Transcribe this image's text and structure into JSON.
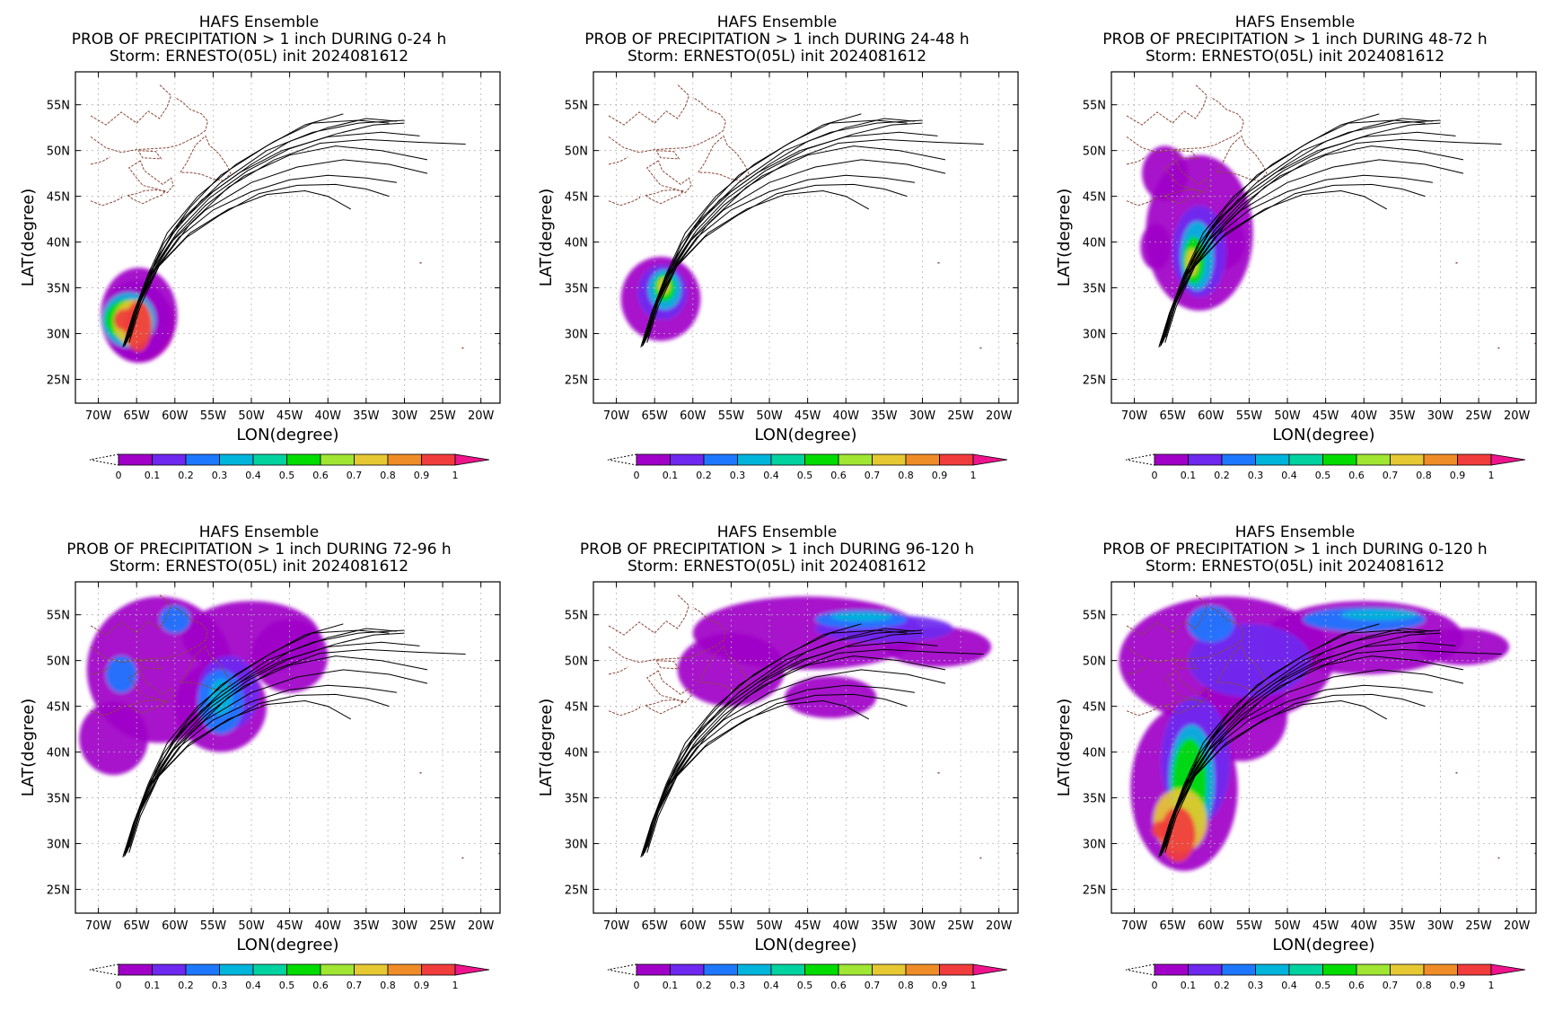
{
  "header": {
    "line1": "HAFS Ensemble",
    "line3": "Storm: ERNESTO(05L) init 2024081612"
  },
  "axes": {
    "xlabel": "LON(degree)",
    "ylabel": "LAT(degree)",
    "xticks": [
      "70W",
      "65W",
      "60W",
      "55W",
      "50W",
      "45W",
      "40W",
      "35W",
      "30W",
      "25W",
      "20W"
    ],
    "yticks": [
      "25N",
      "30N",
      "35N",
      "40N",
      "45N",
      "50N",
      "55N"
    ]
  },
  "colorbar": {
    "labels": [
      "0",
      "0.1",
      "0.2",
      "0.3",
      "0.4",
      "0.5",
      "0.6",
      "0.7",
      "0.8",
      "0.9",
      "1"
    ],
    "colors": [
      "#a000c8",
      "#6e28f0",
      "#1e78ff",
      "#00b4dc",
      "#00d2a0",
      "#00dc00",
      "#a0e632",
      "#e6c832",
      "#f08c28",
      "#f03c3c",
      "#f0148c"
    ]
  },
  "panels": [
    {
      "id": "0-24",
      "line2": "PROB OF PRECIPITATION > 1 inch DURING  0-24 h"
    },
    {
      "id": "24-48",
      "line2": "PROB OF PRECIPITATION > 1 inch DURING 24-48 h"
    },
    {
      "id": "48-72",
      "line2": "PROB OF PRECIPITATION > 1 inch DURING 48-72 h"
    },
    {
      "id": "72-96",
      "line2": "PROB OF PRECIPITATION > 1 inch DURING 72-96 h"
    },
    {
      "id": "96-120",
      "line2": "PROB OF PRECIPITATION > 1 inch DURING 96-120 h"
    },
    {
      "id": "0-120",
      "line2": "PROB OF PRECIPITATION > 1 inch DURING 0-120 h"
    }
  ],
  "tracks": [
    [
      [
        -66.5,
        28.7
      ],
      [
        -65.5,
        32
      ],
      [
        -63,
        37
      ],
      [
        -60,
        41.5
      ],
      [
        -55,
        45.5
      ],
      [
        -50,
        48.5
      ],
      [
        -45,
        51
      ],
      [
        -40,
        52.5
      ],
      [
        -35,
        53.5
      ],
      [
        -31,
        53.2
      ]
    ],
    [
      [
        -66.8,
        28.5
      ],
      [
        -65.5,
        32
      ],
      [
        -63.5,
        36.5
      ],
      [
        -61,
        41
      ],
      [
        -57,
        45
      ],
      [
        -52,
        48.5
      ],
      [
        -47,
        51
      ],
      [
        -42,
        53
      ],
      [
        -36,
        53.3
      ],
      [
        -32,
        53
      ]
    ],
    [
      [
        -66.3,
        29
      ],
      [
        -65,
        33
      ],
      [
        -62.5,
        38
      ],
      [
        -59,
        42.5
      ],
      [
        -54,
        46.5
      ],
      [
        -48,
        50
      ],
      [
        -42,
        52
      ],
      [
        -36,
        53
      ],
      [
        -30,
        53.3
      ]
    ],
    [
      [
        -66,
        29
      ],
      [
        -64.5,
        33
      ],
      [
        -62,
        37.5
      ],
      [
        -58,
        42
      ],
      [
        -53,
        46
      ],
      [
        -47,
        49
      ],
      [
        -41,
        50.8
      ],
      [
        -35,
        51.2
      ],
      [
        -28,
        50.9
      ],
      [
        -22,
        50.7
      ]
    ],
    [
      [
        -66.7,
        28.8
      ],
      [
        -65.5,
        31.8
      ],
      [
        -63.8,
        35.5
      ],
      [
        -61.5,
        39.8
      ],
      [
        -58,
        43.8
      ],
      [
        -54,
        47.3
      ],
      [
        -48,
        50.5
      ],
      [
        -43,
        52.8
      ],
      [
        -38,
        54
      ]
    ],
    [
      [
        -66.2,
        29.2
      ],
      [
        -65,
        32.5
      ],
      [
        -63,
        36.5
      ],
      [
        -60,
        40.5
      ],
      [
        -56,
        44
      ],
      [
        -51,
        47.2
      ],
      [
        -45,
        49.5
      ],
      [
        -39,
        50.5
      ],
      [
        -33,
        50
      ],
      [
        -27,
        49
      ]
    ],
    [
      [
        -66.4,
        28.9
      ],
      [
        -65.3,
        32.2
      ],
      [
        -63.5,
        36
      ],
      [
        -60.5,
        40
      ],
      [
        -56,
        43.5
      ],
      [
        -50,
        46.5
      ],
      [
        -44,
        48.2
      ],
      [
        -38,
        49
      ],
      [
        -32,
        48.5
      ],
      [
        -27,
        47.5
      ]
    ],
    [
      [
        -66.5,
        29
      ],
      [
        -65.2,
        32.5
      ],
      [
        -63,
        36.5
      ],
      [
        -59.5,
        40.5
      ],
      [
        -55,
        43.5
      ],
      [
        -50,
        45.5
      ],
      [
        -45,
        46.8
      ],
      [
        -40,
        47.3
      ],
      [
        -35,
        47
      ],
      [
        -31,
        46.5
      ]
    ],
    [
      [
        -66.1,
        29.4
      ],
      [
        -64.8,
        33
      ],
      [
        -62.5,
        37
      ],
      [
        -58.5,
        40.5
      ],
      [
        -54,
        43
      ],
      [
        -49,
        45.3
      ],
      [
        -44,
        46.2
      ],
      [
        -39,
        46.3
      ],
      [
        -35,
        45.8
      ],
      [
        -32,
        45
      ]
    ],
    [
      [
        -65.9,
        29.6
      ],
      [
        -64.5,
        33.5
      ],
      [
        -62,
        37.5
      ],
      [
        -58,
        41
      ],
      [
        -53,
        43.6
      ],
      [
        -48,
        45.2
      ],
      [
        -43,
        45.6
      ],
      [
        -40,
        45
      ],
      [
        -37,
        43.6
      ]
    ],
    [
      [
        -66.6,
        28.6
      ],
      [
        -65.4,
        32.3
      ],
      [
        -63.2,
        36.8
      ],
      [
        -60.2,
        41
      ],
      [
        -56.5,
        44.6
      ],
      [
        -51.5,
        47.6
      ],
      [
        -46,
        50
      ],
      [
        -40,
        51.5
      ],
      [
        -33,
        52
      ],
      [
        -28,
        51.6
      ]
    ],
    [
      [
        -66.3,
        29.1
      ],
      [
        -65.1,
        32.8
      ],
      [
        -62.8,
        37.2
      ],
      [
        -59.5,
        41.3
      ],
      [
        -55.5,
        44.8
      ],
      [
        -50.5,
        47.8
      ],
      [
        -45,
        50.2
      ],
      [
        -39,
        51.8
      ],
      [
        -34,
        52.8
      ],
      [
        -30,
        53
      ]
    ]
  ],
  "coast": [
    [
      [
        -71,
        53.8
      ],
      [
        -69,
        52.8
      ],
      [
        -67,
        54.2
      ],
      [
        -65,
        53
      ],
      [
        -63.5,
        54.3
      ],
      [
        -62,
        53.5
      ],
      [
        -61,
        54.8
      ],
      [
        -60.5,
        56
      ],
      [
        -62,
        57.2
      ]
    ],
    [
      [
        -71,
        51.5
      ],
      [
        -69,
        50.3
      ],
      [
        -67,
        49.8
      ],
      [
        -65,
        50.1
      ],
      [
        -63,
        50.2
      ],
      [
        -61,
        50.3
      ],
      [
        -59.5,
        50.6
      ],
      [
        -58,
        51.2
      ],
      [
        -57,
        51.6
      ],
      [
        -56,
        52.2
      ],
      [
        -55.7,
        53.2
      ],
      [
        -56.5,
        54
      ],
      [
        -58,
        54.5
      ],
      [
        -59,
        55.3
      ],
      [
        -60,
        55.8
      ]
    ],
    [
      [
        -59.3,
        47.6
      ],
      [
        -58.5,
        48.6
      ],
      [
        -57.3,
        50.6
      ],
      [
        -56,
        51.6
      ],
      [
        -55.5,
        50.6
      ],
      [
        -54.2,
        49.6
      ],
      [
        -53.2,
        48.4
      ],
      [
        -52.7,
        47.5
      ],
      [
        -53.6,
        46.7
      ],
      [
        -55,
        46.9
      ],
      [
        -56.5,
        47.4
      ],
      [
        -58,
        47.6
      ],
      [
        -59.3,
        47.6
      ]
    ],
    [
      [
        -64.5,
        48.9
      ],
      [
        -66,
        48.1
      ],
      [
        -65,
        47
      ],
      [
        -64.2,
        46.2
      ],
      [
        -62.3,
        45.8
      ],
      [
        -61,
        45.4
      ],
      [
        -60.2,
        46.2
      ],
      [
        -60.5,
        47
      ],
      [
        -61.6,
        46.3
      ],
      [
        -64,
        47.8
      ],
      [
        -64.5,
        48.9
      ]
    ],
    [
      [
        -66.2,
        45.1
      ],
      [
        -65.5,
        44.7
      ],
      [
        -64.2,
        44.2
      ],
      [
        -63,
        44.7
      ],
      [
        -61.8,
        45.1
      ],
      [
        -61.2,
        45.6
      ],
      [
        -62.6,
        45.7
      ],
      [
        -64,
        45.6
      ],
      [
        -65,
        45.3
      ],
      [
        -66.2,
        45.1
      ]
    ],
    [
      [
        -71,
        44.5
      ],
      [
        -69.5,
        44
      ],
      [
        -68,
        44.4
      ],
      [
        -67,
        44.8
      ],
      [
        -66.8,
        45.2
      ]
    ],
    [
      [
        -71,
        48.5
      ],
      [
        -69.5,
        48.8
      ],
      [
        -68.5,
        49.3
      ]
    ],
    [
      [
        -64.8,
        50
      ],
      [
        -62.5,
        49.9
      ],
      [
        -61.8,
        49.1
      ],
      [
        -64.2,
        49.2
      ],
      [
        -64.8,
        50
      ]
    ]
  ]
}
